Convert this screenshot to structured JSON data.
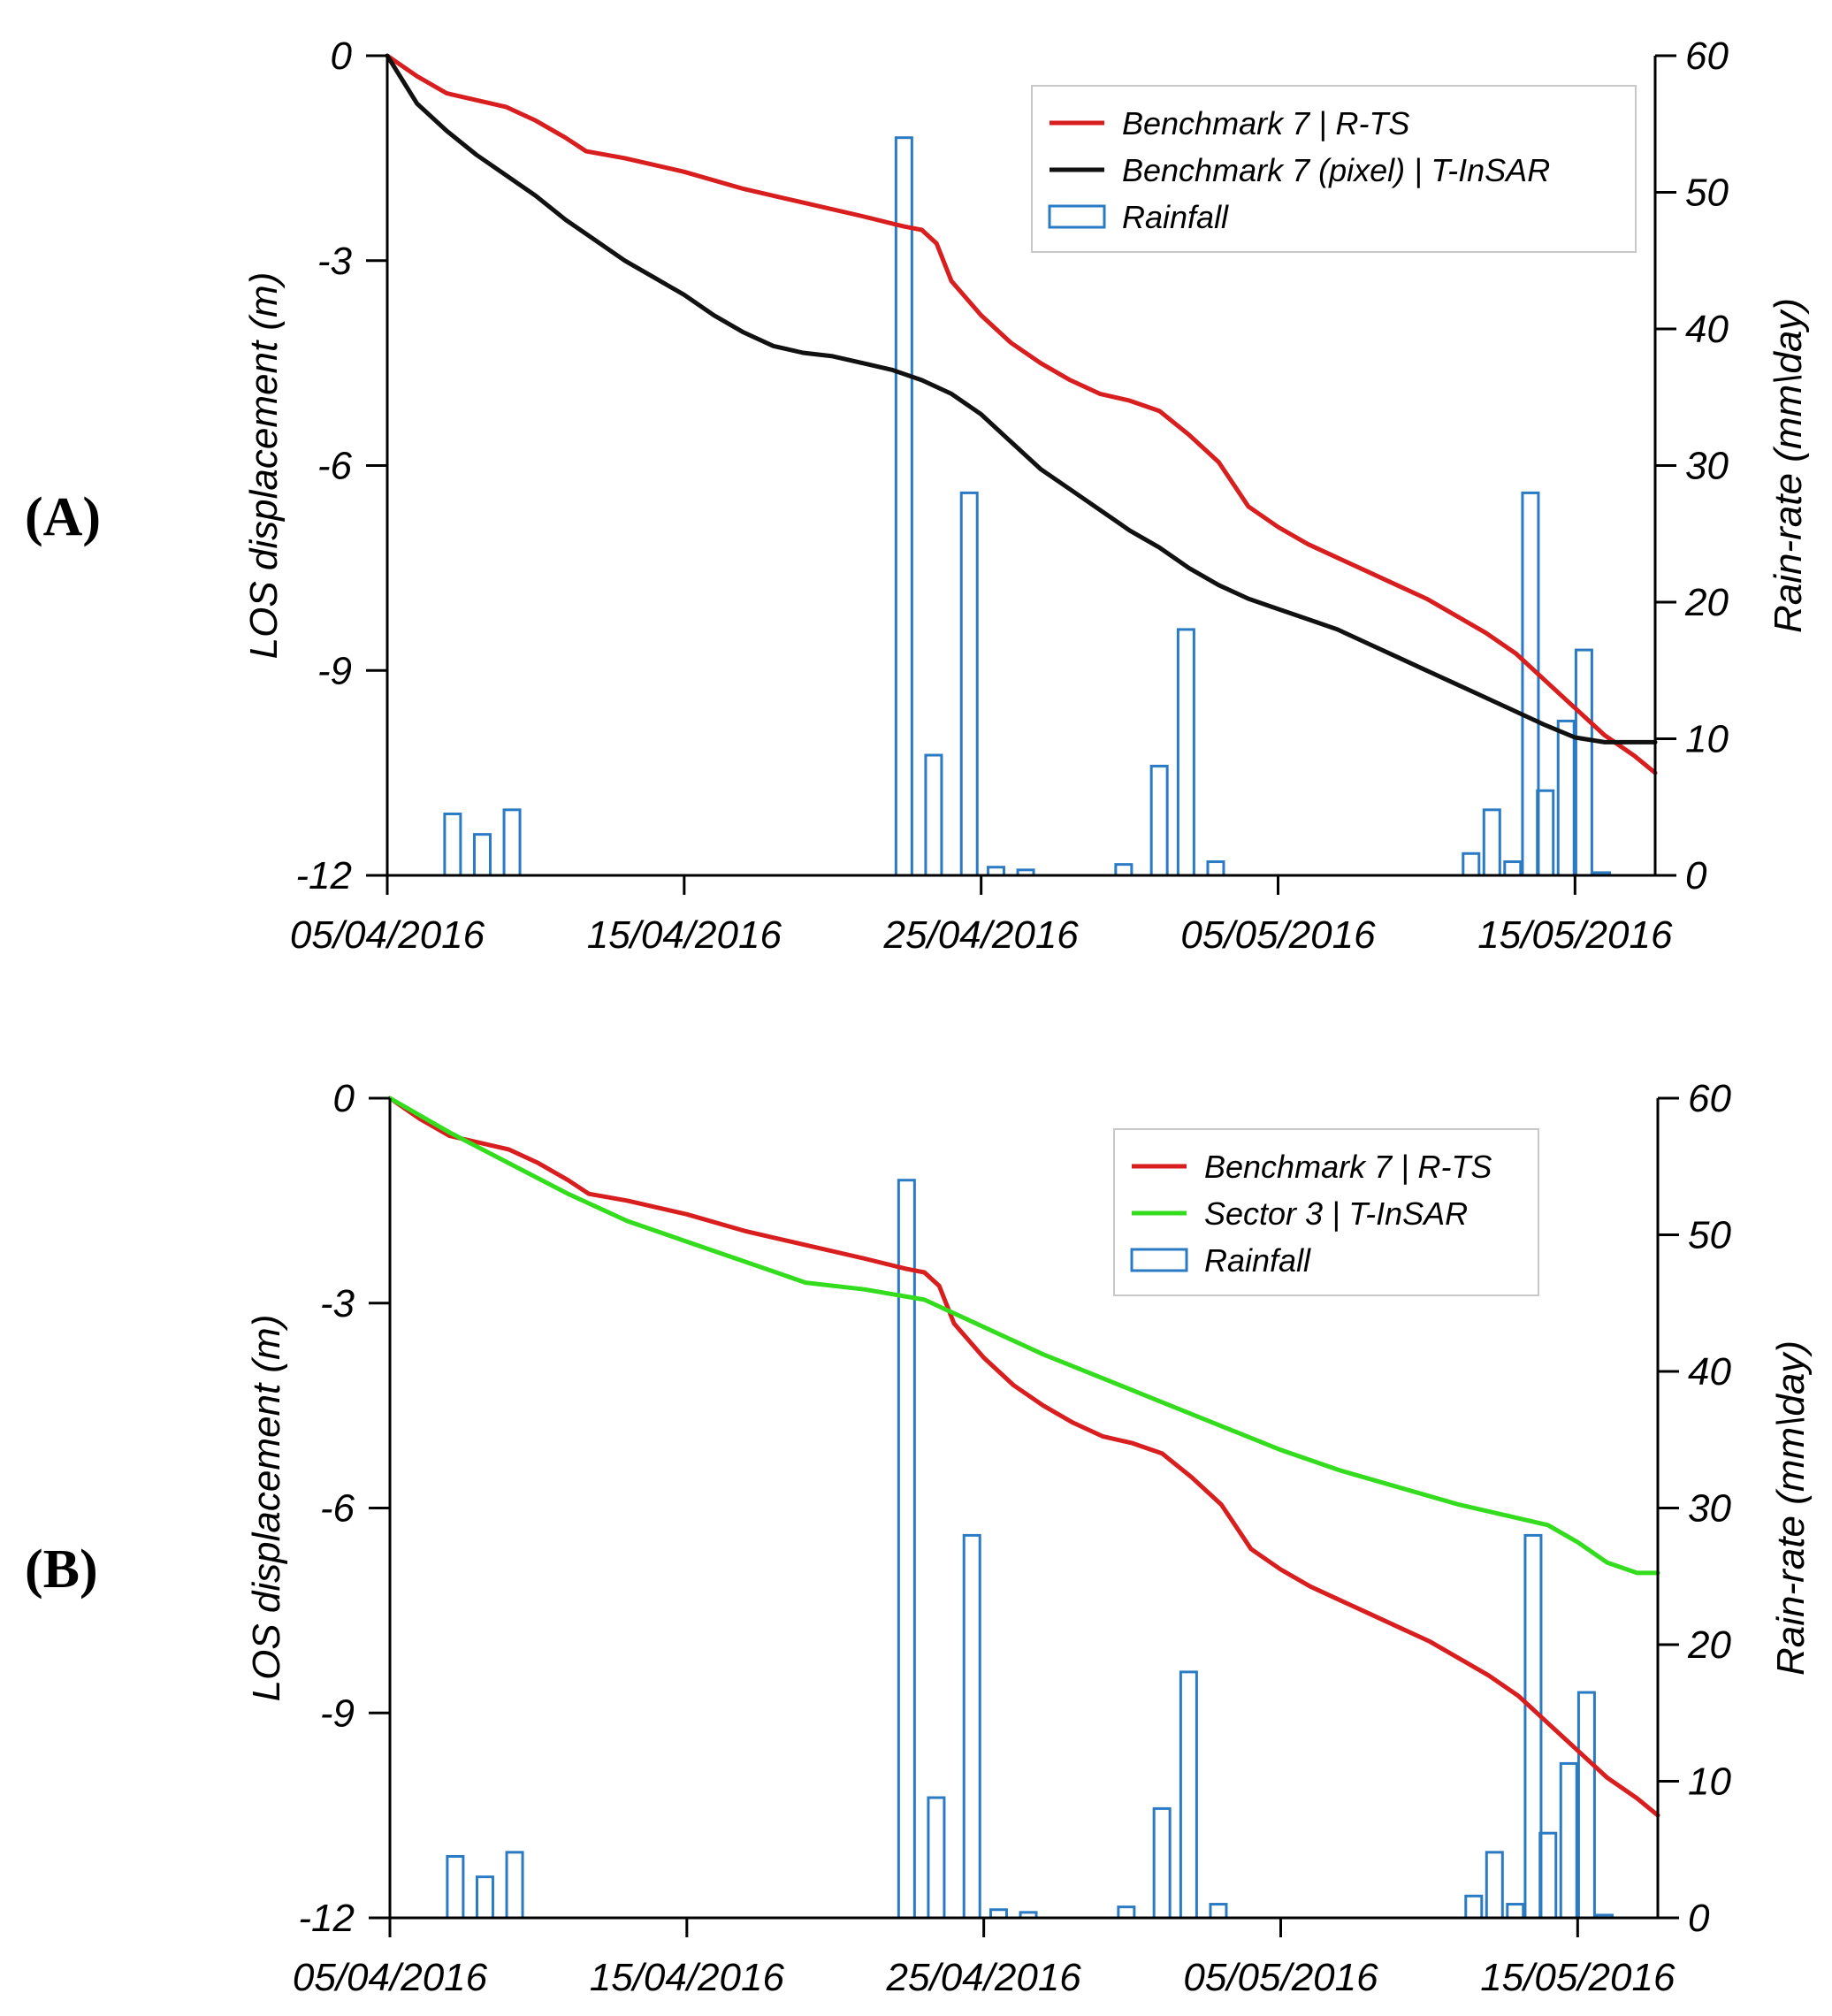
{
  "panels": [
    {
      "tag": "(A)",
      "chart_data": {
        "type": "line",
        "x_ticks": [
          "05/04/2016",
          "15/04/2016",
          "25/04/2016",
          "05/05/2016",
          "15/05/2016"
        ],
        "x_range_days": [
          0,
          42.7
        ],
        "y_left": {
          "label": "LOS displacement (m)",
          "range": [
            -12,
            0
          ],
          "ticks": [
            "0",
            "-3",
            "-6",
            "-9",
            "-12"
          ]
        },
        "y_right": {
          "label": "Rain-rate (mm\\day)",
          "range": [
            0,
            60
          ],
          "ticks": [
            "60",
            "50",
            "40",
            "30",
            "20",
            "10",
            "0"
          ]
        },
        "legend": [
          "Benchmark 7 | R-TS",
          "Benchmark 7 (pixel) | T-InSAR",
          "Rainfall"
        ],
        "series": [
          {
            "name": "Benchmark 7 | R-TS",
            "color": "#d81e1e",
            "points": [
              [
                0,
                0
              ],
              [
                1,
                -0.3
              ],
              [
                2,
                -0.55
              ],
              [
                4,
                -0.75
              ],
              [
                5,
                -0.95
              ],
              [
                6,
                -1.2
              ],
              [
                6.7,
                -1.4
              ],
              [
                8,
                -1.5
              ],
              [
                10,
                -1.7
              ],
              [
                12,
                -1.95
              ],
              [
                14,
                -2.15
              ],
              [
                16,
                -2.35
              ],
              [
                17.4,
                -2.5
              ],
              [
                18,
                -2.55
              ],
              [
                18.5,
                -2.75
              ],
              [
                19,
                -3.3
              ],
              [
                20,
                -3.8
              ],
              [
                21,
                -4.2
              ],
              [
                22,
                -4.5
              ],
              [
                23,
                -4.75
              ],
              [
                24,
                -4.95
              ],
              [
                25,
                -5.05
              ],
              [
                26,
                -5.2
              ],
              [
                27,
                -5.55
              ],
              [
                28,
                -5.95
              ],
              [
                29,
                -6.6
              ],
              [
                30,
                -6.9
              ],
              [
                31,
                -7.15
              ],
              [
                32,
                -7.35
              ],
              [
                33,
                -7.55
              ],
              [
                34,
                -7.75
              ],
              [
                35,
                -7.95
              ],
              [
                36,
                -8.2
              ],
              [
                37,
                -8.45
              ],
              [
                38,
                -8.75
              ],
              [
                39,
                -9.15
              ],
              [
                40,
                -9.55
              ],
              [
                41,
                -9.95
              ],
              [
                42,
                -10.25
              ],
              [
                42.7,
                -10.5
              ]
            ]
          },
          {
            "name": "Benchmark 7 (pixel) | T-InSAR",
            "color": "#111111",
            "points": [
              [
                0,
                0
              ],
              [
                1,
                -0.7
              ],
              [
                2,
                -1.1
              ],
              [
                3,
                -1.45
              ],
              [
                4,
                -1.75
              ],
              [
                5,
                -2.05
              ],
              [
                6,
                -2.4
              ],
              [
                7,
                -2.7
              ],
              [
                8,
                -3.0
              ],
              [
                9,
                -3.25
              ],
              [
                10,
                -3.5
              ],
              [
                11,
                -3.8
              ],
              [
                12,
                -4.05
              ],
              [
                13,
                -4.25
              ],
              [
                14,
                -4.35
              ],
              [
                15,
                -4.4
              ],
              [
                16,
                -4.5
              ],
              [
                17,
                -4.6
              ],
              [
                18,
                -4.75
              ],
              [
                19,
                -4.95
              ],
              [
                20,
                -5.25
              ],
              [
                21,
                -5.65
              ],
              [
                22,
                -6.05
              ],
              [
                23,
                -6.35
              ],
              [
                24,
                -6.65
              ],
              [
                25,
                -6.95
              ],
              [
                26,
                -7.2
              ],
              [
                27,
                -7.5
              ],
              [
                28,
                -7.75
              ],
              [
                29,
                -7.95
              ],
              [
                30,
                -8.1
              ],
              [
                31,
                -8.25
              ],
              [
                32,
                -8.4
              ],
              [
                33,
                -8.6
              ],
              [
                34,
                -8.8
              ],
              [
                35,
                -9.0
              ],
              [
                36,
                -9.2
              ],
              [
                37,
                -9.4
              ],
              [
                38,
                -9.6
              ],
              [
                39,
                -9.8
              ],
              [
                40,
                -9.98
              ],
              [
                41,
                -10.05
              ],
              [
                42,
                -10.05
              ],
              [
                42.7,
                -10.05
              ]
            ]
          }
        ],
        "rainfall": [
          [
            2.2,
            4.5
          ],
          [
            3.2,
            3.0
          ],
          [
            4.2,
            4.8
          ],
          [
            17.4,
            54
          ],
          [
            18.4,
            8.8
          ],
          [
            19.6,
            28
          ],
          [
            20.5,
            0.6
          ],
          [
            21.5,
            0.4
          ],
          [
            24.8,
            0.8
          ],
          [
            26.0,
            8.0
          ],
          [
            26.9,
            18
          ],
          [
            27.9,
            1.0
          ],
          [
            36.5,
            1.6
          ],
          [
            37.2,
            4.8
          ],
          [
            37.9,
            1.0
          ],
          [
            38.5,
            28
          ],
          [
            39.0,
            6.2
          ],
          [
            39.7,
            11.3
          ],
          [
            40.3,
            16.5
          ],
          [
            40.9,
            0.2
          ]
        ]
      }
    },
    {
      "tag": "(B)",
      "chart_data": {
        "type": "line",
        "x_ticks": [
          "05/04/2016",
          "15/04/2016",
          "25/04/2016",
          "05/05/2016",
          "15/05/2016"
        ],
        "x_range_days": [
          0,
          42.7
        ],
        "y_left": {
          "label": "LOS displacement (m)",
          "range": [
            -12,
            0
          ],
          "ticks": [
            "0",
            "-3",
            "-6",
            "-9",
            "-12"
          ]
        },
        "y_right": {
          "label": "Rain-rate (mm\\day)",
          "range": [
            0,
            60
          ],
          "ticks": [
            "60",
            "50",
            "40",
            "30",
            "20",
            "10",
            "0"
          ]
        },
        "legend": [
          "Benchmark 7 | R-TS",
          "Sector 3 | T-InSAR",
          "Rainfall"
        ],
        "series": [
          {
            "name": "Benchmark 7 | R-TS",
            "color": "#d81e1e",
            "points": [
              [
                0,
                0
              ],
              [
                1,
                -0.3
              ],
              [
                2,
                -0.55
              ],
              [
                4,
                -0.75
              ],
              [
                5,
                -0.95
              ],
              [
                6,
                -1.2
              ],
              [
                6.7,
                -1.4
              ],
              [
                8,
                -1.5
              ],
              [
                10,
                -1.7
              ],
              [
                12,
                -1.95
              ],
              [
                14,
                -2.15
              ],
              [
                16,
                -2.35
              ],
              [
                17.4,
                -2.5
              ],
              [
                18,
                -2.55
              ],
              [
                18.5,
                -2.75
              ],
              [
                19,
                -3.3
              ],
              [
                20,
                -3.8
              ],
              [
                21,
                -4.2
              ],
              [
                22,
                -4.5
              ],
              [
                23,
                -4.75
              ],
              [
                24,
                -4.95
              ],
              [
                25,
                -5.05
              ],
              [
                26,
                -5.2
              ],
              [
                27,
                -5.55
              ],
              [
                28,
                -5.95
              ],
              [
                29,
                -6.6
              ],
              [
                30,
                -6.9
              ],
              [
                31,
                -7.15
              ],
              [
                32,
                -7.35
              ],
              [
                33,
                -7.55
              ],
              [
                34,
                -7.75
              ],
              [
                35,
                -7.95
              ],
              [
                36,
                -8.2
              ],
              [
                37,
                -8.45
              ],
              [
                38,
                -8.75
              ],
              [
                39,
                -9.15
              ],
              [
                40,
                -9.55
              ],
              [
                41,
                -9.95
              ],
              [
                42,
                -10.25
              ],
              [
                42.7,
                -10.5
              ]
            ]
          },
          {
            "name": "Sector 3 | T-InSAR",
            "color": "#33dd1e",
            "points": [
              [
                0,
                0
              ],
              [
                2,
                -0.5
              ],
              [
                4,
                -0.95
              ],
              [
                6,
                -1.4
              ],
              [
                8,
                -1.8
              ],
              [
                10,
                -2.1
              ],
              [
                12,
                -2.4
              ],
              [
                14,
                -2.7
              ],
              [
                16,
                -2.8
              ],
              [
                18,
                -2.95
              ],
              [
                20,
                -3.35
              ],
              [
                22,
                -3.75
              ],
              [
                24,
                -4.1
              ],
              [
                26,
                -4.45
              ],
              [
                28,
                -4.8
              ],
              [
                30,
                -5.15
              ],
              [
                32,
                -5.45
              ],
              [
                34,
                -5.7
              ],
              [
                36,
                -5.95
              ],
              [
                38,
                -6.15
              ],
              [
                39,
                -6.25
              ],
              [
                40,
                -6.5
              ],
              [
                41,
                -6.8
              ],
              [
                42,
                -6.95
              ],
              [
                42.7,
                -6.95
              ]
            ]
          }
        ],
        "rainfall": [
          [
            2.2,
            4.5
          ],
          [
            3.2,
            3.0
          ],
          [
            4.2,
            4.8
          ],
          [
            17.4,
            54
          ],
          [
            18.4,
            8.8
          ],
          [
            19.6,
            28
          ],
          [
            20.5,
            0.6
          ],
          [
            21.5,
            0.4
          ],
          [
            24.8,
            0.8
          ],
          [
            26.0,
            8.0
          ],
          [
            26.9,
            18
          ],
          [
            27.9,
            1.0
          ],
          [
            36.5,
            1.6
          ],
          [
            37.2,
            4.8
          ],
          [
            37.9,
            1.0
          ],
          [
            38.5,
            28
          ],
          [
            39.0,
            6.2
          ],
          [
            39.7,
            11.3
          ],
          [
            40.3,
            16.5
          ],
          [
            40.9,
            0.2
          ]
        ]
      }
    }
  ]
}
